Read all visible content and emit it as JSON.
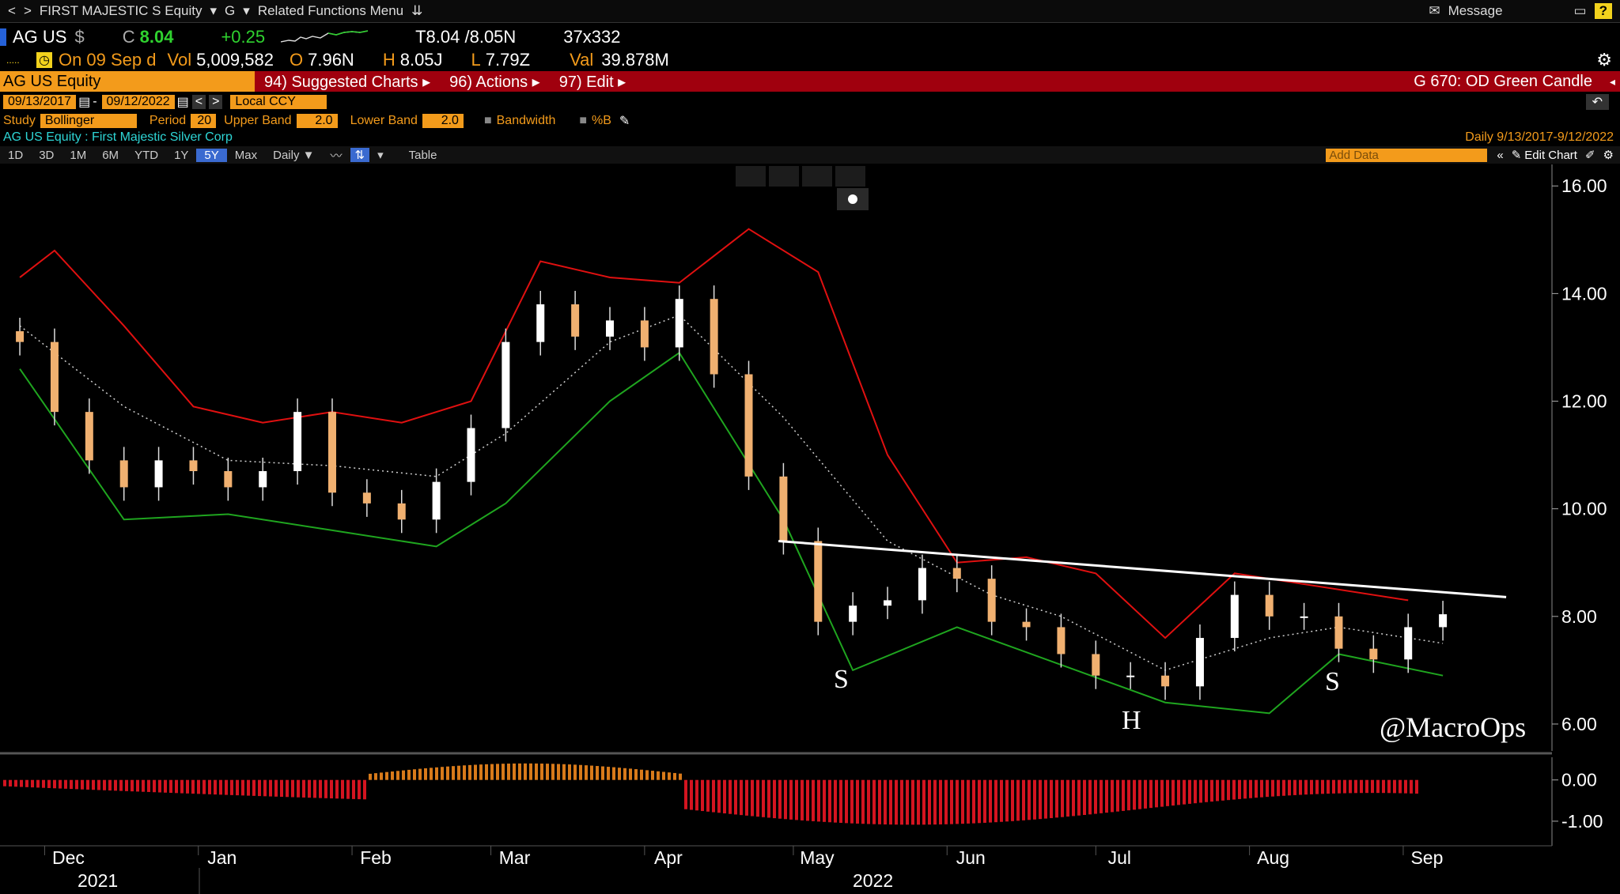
{
  "nav": {
    "security": "FIRST MAJESTIC S Equity",
    "g": "G",
    "menu": "Related Functions Menu",
    "message": "Message"
  },
  "quote": {
    "ticker": "AG US",
    "currency": "$",
    "flag": "C",
    "last": "8.04",
    "change": "+0.25",
    "bidask": "T8.04 /8.05N",
    "size": "37x332",
    "on": "On 09 Sep d",
    "vol_label": "Vol",
    "vol": "5,009,582",
    "open_label": "O",
    "open": "7.96N",
    "high_label": "H",
    "high": "8.05J",
    "low_label": "L",
    "low": "7.79Z",
    "val_label": "Val",
    "val": "39.878M"
  },
  "menubar": {
    "security": "AG US Equity",
    "suggested": "94) Suggested Charts ▸",
    "actions": "96) Actions ▸",
    "edit": "97) Edit ▸",
    "template": "G 670: OD Green Candle"
  },
  "dates": {
    "start": "09/13/2017",
    "end": "09/12/2022",
    "ccy": "Local CCY"
  },
  "study": {
    "label": "Study",
    "name": "Bollinger",
    "period_label": "Period",
    "period": "20",
    "upper_label": "Upper Band",
    "upper": "2.0",
    "lower_label": "Lower Band",
    "lower": "2.0",
    "bandwidth": "Bandwidth",
    "pctb": "%B"
  },
  "security_line": {
    "name": "AG US Equity : First Majestic Silver Corp",
    "freq_range": "Daily   9/13/2017-9/12/2022"
  },
  "ranges": [
    "1D",
    "3D",
    "1M",
    "6M",
    "YTD",
    "1Y",
    "5Y",
    "Max"
  ],
  "toolbar": {
    "daily": "Daily ▼",
    "table": "Table",
    "add_data": "Add Data",
    "edit_chart": "Edit Chart"
  },
  "colors": {
    "upper_band": "#e01010",
    "lower_band": "#1fa51f",
    "mid_band": "#cfcfcf",
    "candle_up": "#ffffff",
    "candle_down": "#f0b070",
    "neckline": "#ffffff",
    "oscillator": "#d41420"
  },
  "annotations": {
    "left_shoulder": "S",
    "head": "H",
    "right_shoulder": "S",
    "watermark": "@MacroOps"
  },
  "chart_data": {
    "type": "line",
    "title": "",
    "y_ticks": [
      "16.00",
      "14.00",
      "12.00",
      "10.00",
      "8.00",
      "6.00"
    ],
    "ylim": [
      5.5,
      16.4
    ],
    "x_ticks": [
      "Dec",
      "Jan",
      "Feb",
      "Mar",
      "Apr",
      "May",
      "Jun",
      "Jul",
      "Aug",
      "Sep"
    ],
    "year_labels": [
      "2021",
      "2022"
    ],
    "close_series": [
      {
        "x": "2021-11-26",
        "y": 13.1
      },
      {
        "x": "2021-12-03",
        "y": 11.8
      },
      {
        "x": "2021-12-10",
        "y": 10.9
      },
      {
        "x": "2021-12-17",
        "y": 10.4
      },
      {
        "x": "2021-12-24",
        "y": 10.9
      },
      {
        "x": "2021-12-31",
        "y": 10.7
      },
      {
        "x": "2022-01-07",
        "y": 10.4
      },
      {
        "x": "2022-01-14",
        "y": 10.7
      },
      {
        "x": "2022-01-21",
        "y": 11.8
      },
      {
        "x": "2022-01-28",
        "y": 10.3
      },
      {
        "x": "2022-02-04",
        "y": 10.1
      },
      {
        "x": "2022-02-11",
        "y": 9.8
      },
      {
        "x": "2022-02-18",
        "y": 10.5
      },
      {
        "x": "2022-02-25",
        "y": 11.5
      },
      {
        "x": "2022-03-04",
        "y": 13.1
      },
      {
        "x": "2022-03-11",
        "y": 13.8
      },
      {
        "x": "2022-03-18",
        "y": 13.2
      },
      {
        "x": "2022-03-25",
        "y": 13.5
      },
      {
        "x": "2022-04-01",
        "y": 13.0
      },
      {
        "x": "2022-04-08",
        "y": 13.9
      },
      {
        "x": "2022-04-15",
        "y": 12.5
      },
      {
        "x": "2022-04-22",
        "y": 10.6
      },
      {
        "x": "2022-04-29",
        "y": 9.4
      },
      {
        "x": "2022-05-06",
        "y": 7.9
      },
      {
        "x": "2022-05-13",
        "y": 8.2
      },
      {
        "x": "2022-05-20",
        "y": 8.3
      },
      {
        "x": "2022-05-27",
        "y": 8.9
      },
      {
        "x": "2022-06-03",
        "y": 8.7
      },
      {
        "x": "2022-06-10",
        "y": 7.9
      },
      {
        "x": "2022-06-17",
        "y": 7.8
      },
      {
        "x": "2022-06-24",
        "y": 7.3
      },
      {
        "x": "2022-07-01",
        "y": 6.9
      },
      {
        "x": "2022-07-08",
        "y": 6.9
      },
      {
        "x": "2022-07-15",
        "y": 6.7
      },
      {
        "x": "2022-07-22",
        "y": 7.6
      },
      {
        "x": "2022-07-29",
        "y": 8.4
      },
      {
        "x": "2022-08-05",
        "y": 8.0
      },
      {
        "x": "2022-08-12",
        "y": 8.0
      },
      {
        "x": "2022-08-19",
        "y": 7.4
      },
      {
        "x": "2022-08-26",
        "y": 7.2
      },
      {
        "x": "2022-09-02",
        "y": 7.8
      },
      {
        "x": "2022-09-09",
        "y": 8.04
      }
    ],
    "upper_band": [
      {
        "x": "2021-11-26",
        "y": 14.3
      },
      {
        "x": "2021-12-03",
        "y": 14.8
      },
      {
        "x": "2021-12-17",
        "y": 13.4
      },
      {
        "x": "2021-12-31",
        "y": 11.9
      },
      {
        "x": "2022-01-14",
        "y": 11.6
      },
      {
        "x": "2022-01-28",
        "y": 11.8
      },
      {
        "x": "2022-02-11",
        "y": 11.6
      },
      {
        "x": "2022-02-25",
        "y": 12.0
      },
      {
        "x": "2022-03-11",
        "y": 14.6
      },
      {
        "x": "2022-03-25",
        "y": 14.3
      },
      {
        "x": "2022-04-08",
        "y": 14.2
      },
      {
        "x": "2022-04-22",
        "y": 15.2
      },
      {
        "x": "2022-05-06",
        "y": 14.4
      },
      {
        "x": "2022-05-20",
        "y": 11.0
      },
      {
        "x": "2022-06-03",
        "y": 9.0
      },
      {
        "x": "2022-06-17",
        "y": 9.1
      },
      {
        "x": "2022-07-01",
        "y": 8.8
      },
      {
        "x": "2022-07-15",
        "y": 7.6
      },
      {
        "x": "2022-07-29",
        "y": 8.8
      },
      {
        "x": "2022-08-12",
        "y": 8.6
      },
      {
        "x": "2022-09-02",
        "y": 8.3
      }
    ],
    "middle_band": [
      {
        "x": "2021-11-26",
        "y": 13.4
      },
      {
        "x": "2021-12-17",
        "y": 11.9
      },
      {
        "x": "2022-01-07",
        "y": 10.9
      },
      {
        "x": "2022-01-28",
        "y": 10.8
      },
      {
        "x": "2022-02-18",
        "y": 10.6
      },
      {
        "x": "2022-03-04",
        "y": 11.4
      },
      {
        "x": "2022-03-25",
        "y": 13.1
      },
      {
        "x": "2022-04-08",
        "y": 13.6
      },
      {
        "x": "2022-04-29",
        "y": 11.7
      },
      {
        "x": "2022-05-20",
        "y": 9.4
      },
      {
        "x": "2022-06-10",
        "y": 8.4
      },
      {
        "x": "2022-06-24",
        "y": 8.0
      },
      {
        "x": "2022-07-15",
        "y": 7.0
      },
      {
        "x": "2022-08-05",
        "y": 7.6
      },
      {
        "x": "2022-08-19",
        "y": 7.8
      },
      {
        "x": "2022-09-09",
        "y": 7.5
      }
    ],
    "lower_band": [
      {
        "x": "2021-11-26",
        "y": 12.6
      },
      {
        "x": "2021-12-17",
        "y": 9.8
      },
      {
        "x": "2022-01-07",
        "y": 9.9
      },
      {
        "x": "2022-01-28",
        "y": 9.6
      },
      {
        "x": "2022-02-18",
        "y": 9.3
      },
      {
        "x": "2022-03-04",
        "y": 10.1
      },
      {
        "x": "2022-03-25",
        "y": 12.0
      },
      {
        "x": "2022-04-08",
        "y": 12.9
      },
      {
        "x": "2022-04-29",
        "y": 9.8
      },
      {
        "x": "2022-05-13",
        "y": 7.0
      },
      {
        "x": "2022-06-03",
        "y": 7.8
      },
      {
        "x": "2022-06-24",
        "y": 7.1
      },
      {
        "x": "2022-07-15",
        "y": 6.4
      },
      {
        "x": "2022-08-05",
        "y": 6.2
      },
      {
        "x": "2022-08-19",
        "y": 7.3
      },
      {
        "x": "2022-09-09",
        "y": 6.9
      }
    ],
    "neckline": [
      {
        "x": "2022-04-28",
        "y": 9.4
      },
      {
        "x": "2022-09-09",
        "y": 8.3
      }
    ],
    "lower_panel": {
      "y_ticks": [
        "0.00",
        "-1.00"
      ],
      "ylim": [
        -1.5,
        0.55
      ]
    }
  }
}
